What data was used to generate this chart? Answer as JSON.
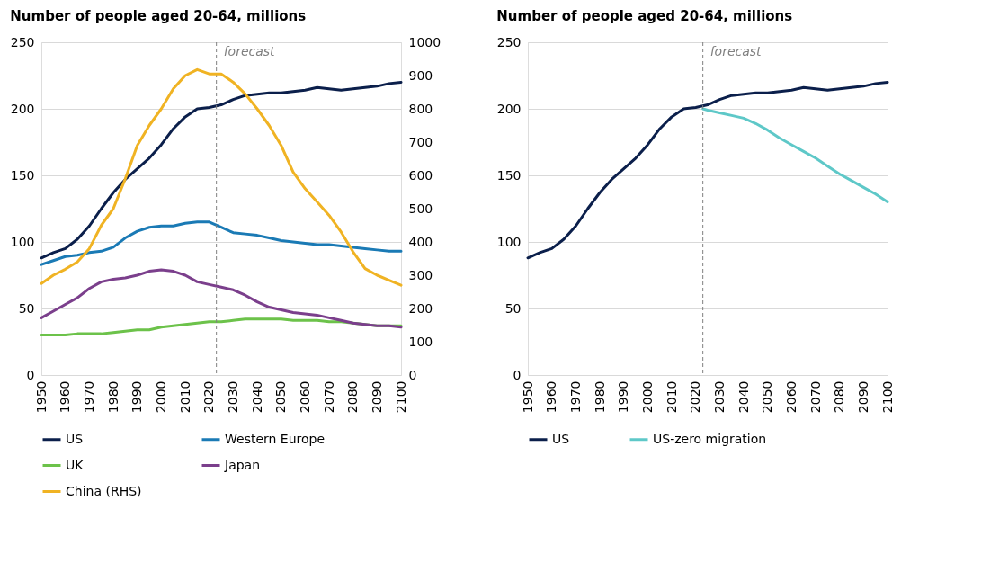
{
  "chart_data": [
    {
      "type": "line",
      "title": "Number of people aged 20-64, millions",
      "xlim": [
        1950,
        2100
      ],
      "xticks": [
        1950,
        1960,
        1970,
        1980,
        1990,
        2000,
        2010,
        2020,
        2030,
        2040,
        2050,
        2060,
        2070,
        2080,
        2090,
        2100
      ],
      "ylim": [
        0,
        250
      ],
      "yticks": [
        0,
        50,
        100,
        150,
        200,
        250
      ],
      "y2lim": [
        0,
        1000
      ],
      "y2ticks": [
        0,
        100,
        200,
        300,
        400,
        500,
        600,
        700,
        800,
        900,
        1000
      ],
      "grid": "y",
      "legend": "bottom",
      "x": [
        1950,
        1955,
        1960,
        1965,
        1970,
        1975,
        1980,
        1985,
        1990,
        1995,
        2000,
        2005,
        2010,
        2015,
        2020,
        2025,
        2030,
        2035,
        2040,
        2045,
        2050,
        2055,
        2060,
        2065,
        2070,
        2075,
        2080,
        2085,
        2090,
        2095,
        2100
      ],
      "series": [
        {
          "name": "US",
          "color": "#0b1f4b",
          "values": [
            88,
            92,
            95,
            102,
            112,
            125,
            137,
            147,
            155,
            163,
            173,
            185,
            194,
            200,
            201,
            203,
            207,
            210,
            211,
            212,
            212,
            213,
            214,
            216,
            215,
            214,
            215,
            216,
            217,
            219,
            220
          ]
        },
        {
          "name": "Western Europe",
          "color": "#1a7ab5",
          "values": [
            83,
            86,
            89,
            90,
            92,
            93,
            96,
            103,
            108,
            111,
            112,
            112,
            114,
            115,
            115,
            111,
            107,
            106,
            105,
            103,
            101,
            100,
            99,
            98,
            98,
            97,
            96,
            95,
            94,
            93,
            93
          ]
        },
        {
          "name": "UK",
          "color": "#6cc24a",
          "values": [
            30,
            30,
            30,
            31,
            31,
            31,
            32,
            33,
            34,
            34,
            36,
            37,
            38,
            39,
            40,
            40,
            41,
            42,
            42,
            42,
            42,
            41,
            41,
            41,
            40,
            40,
            39,
            38,
            37,
            37,
            37
          ]
        },
        {
          "name": "Japan",
          "color": "#7b3f8c",
          "values": [
            43,
            48,
            53,
            58,
            65,
            70,
            72,
            73,
            75,
            78,
            79,
            78,
            75,
            70,
            68,
            66,
            64,
            60,
            55,
            51,
            49,
            47,
            46,
            45,
            43,
            41,
            39,
            38,
            37,
            37,
            36
          ]
        },
        {
          "name": "China (RHS)",
          "color": "#f0b323",
          "axis": "y2",
          "values": [
            275,
            300,
            318,
            340,
            380,
            450,
            500,
            590,
            690,
            750,
            800,
            860,
            900,
            918,
            905,
            905,
            880,
            845,
            800,
            750,
            690,
            610,
            560,
            520,
            480,
            430,
            370,
            320,
            300,
            285,
            270
          ]
        }
      ],
      "ref_lines": [
        {
          "axis": "x",
          "value": 2023,
          "label": "forecast",
          "color": "#808080",
          "line_style": "dashed"
        }
      ]
    },
    {
      "type": "line",
      "title": "Number of people aged 20-64, millions",
      "xlim": [
        1950,
        2100
      ],
      "xticks": [
        1950,
        1960,
        1970,
        1980,
        1990,
        2000,
        2010,
        2020,
        2030,
        2040,
        2050,
        2060,
        2070,
        2080,
        2090,
        2100
      ],
      "ylim": [
        0,
        250
      ],
      "yticks": [
        0,
        50,
        100,
        150,
        200,
        250
      ],
      "grid": "y",
      "legend": "bottom",
      "x": [
        1950,
        1955,
        1960,
        1965,
        1970,
        1975,
        1980,
        1985,
        1990,
        1995,
        2000,
        2005,
        2010,
        2015,
        2020,
        2025,
        2030,
        2035,
        2040,
        2045,
        2050,
        2055,
        2060,
        2065,
        2070,
        2075,
        2080,
        2085,
        2090,
        2095,
        2100
      ],
      "series": [
        {
          "name": "US",
          "color": "#0b1f4b",
          "values": [
            88,
            92,
            95,
            102,
            112,
            125,
            137,
            147,
            155,
            163,
            173,
            185,
            194,
            200,
            201,
            203,
            207,
            210,
            211,
            212,
            212,
            213,
            214,
            216,
            215,
            214,
            215,
            216,
            217,
            219,
            220
          ]
        },
        {
          "name": "US-zero migration",
          "color": "#5ec8c8",
          "x": [
            2023,
            2025,
            2030,
            2035,
            2040,
            2045,
            2050,
            2055,
            2060,
            2065,
            2070,
            2075,
            2080,
            2085,
            2090,
            2095,
            2100
          ],
          "values": [
            200,
            199,
            197,
            195,
            193,
            189,
            184,
            178,
            173,
            168,
            163,
            157,
            151,
            146,
            141,
            136,
            130
          ]
        }
      ],
      "ref_lines": [
        {
          "axis": "x",
          "value": 2023,
          "label": "forecast",
          "color": "#808080",
          "line_style": "dashed"
        }
      ]
    }
  ]
}
